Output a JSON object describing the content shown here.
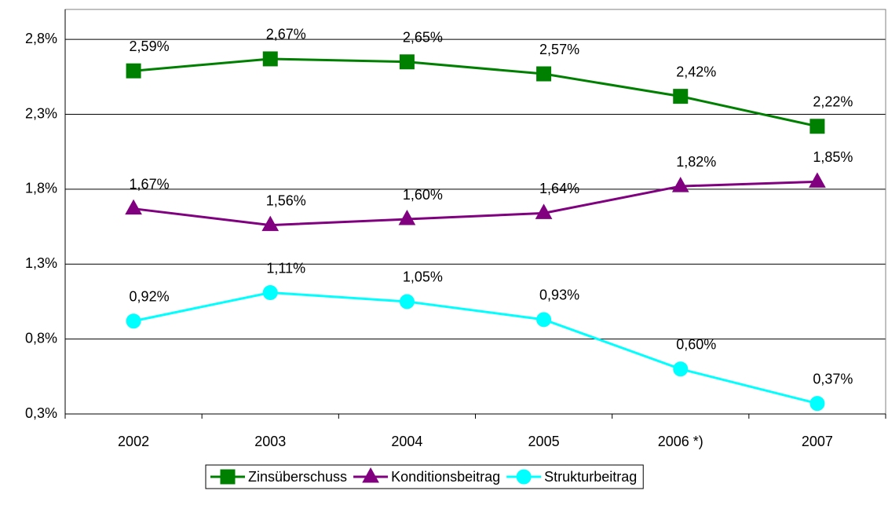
{
  "chart_data": {
    "type": "line",
    "categories": [
      "2002",
      "2003",
      "2004",
      "2005",
      "2006 *)",
      "2007"
    ],
    "series": [
      {
        "name": "Zinsüberschuss",
        "color": "#008000",
        "marker": "square",
        "values": [
          2.59,
          2.67,
          2.65,
          2.57,
          2.42,
          2.22
        ],
        "value_labels": [
          "2,59%",
          "2,67%",
          "2,65%",
          "2,57%",
          "2,42%",
          "2,22%"
        ]
      },
      {
        "name": "Konditionsbeitrag",
        "color": "#800080",
        "marker": "triangle",
        "values": [
          1.67,
          1.56,
          1.6,
          1.64,
          1.82,
          1.85
        ],
        "value_labels": [
          "1,67%",
          "1,56%",
          "1,60%",
          "1,64%",
          "1,82%",
          "1,85%"
        ]
      },
      {
        "name": "Strukturbeitrag",
        "color": "#00ffff",
        "marker": "circle",
        "values": [
          0.92,
          1.11,
          1.05,
          0.93,
          0.6,
          0.37
        ],
        "value_labels": [
          "0,92%",
          "1,11%",
          "1,05%",
          "0,93%",
          "0,60%",
          "0,37%"
        ]
      }
    ],
    "ylim": [
      0.3,
      3.0
    ],
    "yticks": [
      {
        "value": 0.3,
        "label": "0,3%"
      },
      {
        "value": 0.8,
        "label": "0,8%"
      },
      {
        "value": 1.3,
        "label": "1,3%"
      },
      {
        "value": 1.8,
        "label": "1,8%"
      },
      {
        "value": 2.3,
        "label": "2,3%"
      },
      {
        "value": 2.8,
        "label": "2,8%"
      }
    ],
    "grid": true,
    "legend": "bottom"
  }
}
